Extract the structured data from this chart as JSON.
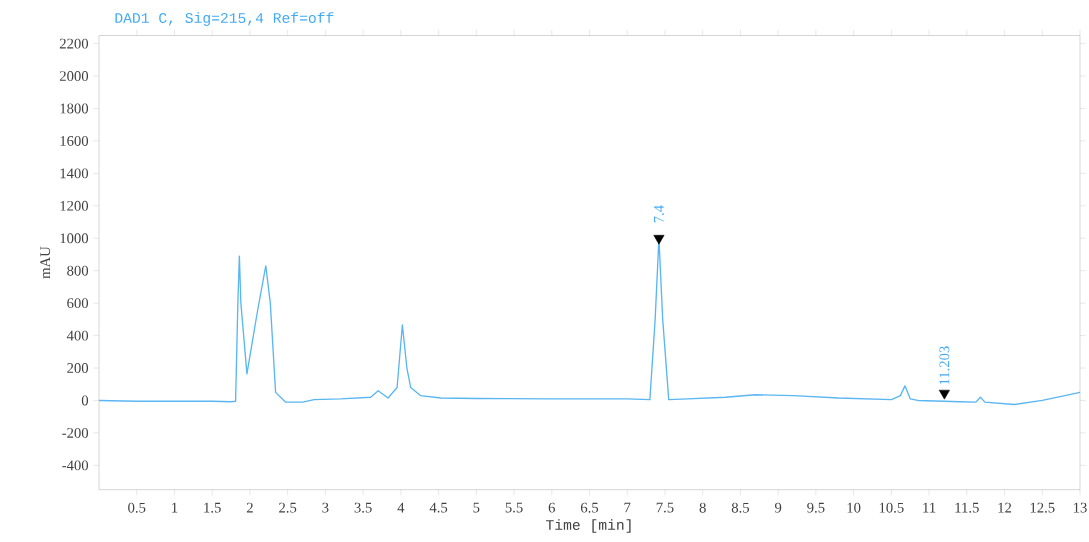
{
  "chart_data": {
    "type": "line",
    "title": "DAD1 C, Sig=215,4 Ref=off",
    "xlabel": "Time [min]",
    "ylabel": "mAU",
    "series": [
      {
        "color": "#5ab6f2",
        "x": [
          0,
          0.5,
          1,
          1.5,
          1.75,
          1.81,
          1.84,
          1.86,
          1.88,
          1.96,
          2.1,
          2.21,
          2.27,
          2.34,
          2.47,
          2.7,
          2.85,
          3.2,
          3.6,
          3.7,
          3.83,
          3.95,
          4.02,
          4.08,
          4.13,
          4.26,
          4.53,
          5,
          6,
          7,
          7.3,
          7.37,
          7.42,
          7.47,
          7.55,
          7.8,
          8.3,
          8.7,
          9.2,
          9.8,
          10.5,
          10.62,
          10.68,
          10.75,
          10.85,
          11.2,
          11.4,
          11.62,
          11.68,
          11.74,
          12.13,
          12.5,
          12.8,
          13.0
        ],
        "values": [
          0,
          -5,
          -5,
          -5,
          -8,
          -5,
          600,
          890,
          600,
          164,
          550,
          830,
          600,
          50,
          -10,
          -10,
          5,
          10,
          20,
          60,
          15,
          80,
          465,
          200,
          80,
          30,
          15,
          12,
          10,
          10,
          5,
          500,
          1000,
          500,
          5,
          10,
          20,
          35,
          30,
          15,
          5,
          30,
          90,
          10,
          0,
          -5,
          -8,
          -10,
          20,
          -10,
          -25,
          0,
          30,
          50
        ]
      },
      {
        "type": "scatter",
        "color": "#000000",
        "marker": "triangle",
        "x": [
          7.42,
          11.203
        ],
        "values": [
          1000,
          45
        ]
      }
    ],
    "xlim": [
      0,
      13
    ],
    "ylim": [
      -550,
      2250
    ],
    "xticks": [
      0.5,
      1,
      1.5,
      2,
      2.5,
      3,
      3.5,
      4,
      4.5,
      5,
      5.5,
      6,
      6.5,
      7,
      7.5,
      8,
      8.5,
      9,
      9.5,
      10,
      10.5,
      11,
      11.5,
      12,
      12.5,
      13
    ],
    "yticks": [
      -400,
      -200,
      0,
      200,
      400,
      600,
      800,
      1000,
      1200,
      1400,
      1600,
      1800,
      2000,
      2200
    ],
    "annotations": [
      {
        "text": "7.4",
        "x": 7.42,
        "y": 1000
      },
      {
        "text": "11.203",
        "x": 11.203,
        "y": 0
      }
    ]
  }
}
